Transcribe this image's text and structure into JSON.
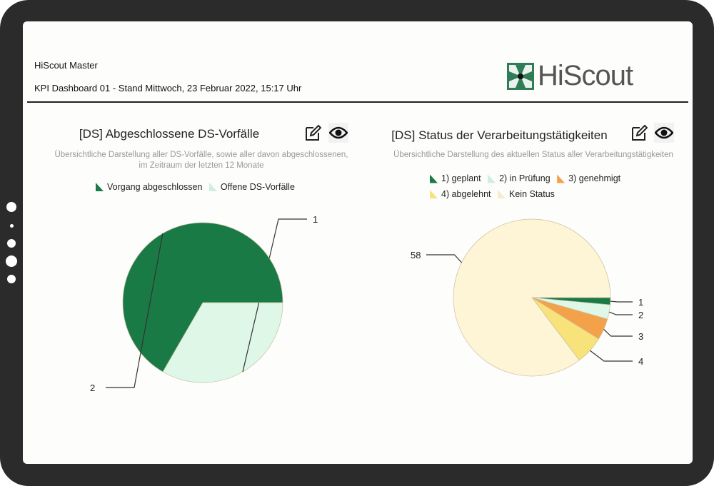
{
  "header": {
    "app_name": "HiScout Master",
    "subtitle": "KPI Dashboard 01 - Stand Mittwoch, 23 Februar 2022, 15:17 Uhr",
    "logo_text": "HiScout"
  },
  "panels": [
    {
      "title": "[DS] Abgeschlossene DS-Vorfälle",
      "description_line1": "Übersichtliche Darstellung aller DS-Vorfälle, sowie aller davon abgeschlossenen,",
      "description_line2": "im Zeitraum der letzten 12 Monate",
      "edit_icon": "pencil-square-icon",
      "view_icon": "eye-icon"
    },
    {
      "title": "[DS] Status der Verarbeitungstätigkeiten",
      "description_line1": "Übersichtliche Darstellung des aktuellen Status aller Verarbeitungstätigkeiten",
      "edit_icon": "pencil-square-icon",
      "view_icon": "eye-icon"
    }
  ],
  "chart_data": [
    {
      "type": "pie",
      "title": "[DS] Abgeschlossene DS-Vorfälle",
      "legend": "top",
      "series": [
        {
          "name": "Offene DS-Vorfälle",
          "value": 1,
          "color": "#dff7e6"
        },
        {
          "name": "Vorgang abgeschlossen",
          "value": 2,
          "color": "#1a7a45"
        }
      ],
      "data_labels": [
        "1",
        "2"
      ]
    },
    {
      "type": "pie",
      "title": "[DS] Status der Verarbeitungstätigkeiten",
      "legend": "top",
      "series": [
        {
          "name": "1) geplant",
          "value": 1,
          "color": "#1a7a45"
        },
        {
          "name": "2) in Prüfung",
          "value": 2,
          "color": "#dff7e6"
        },
        {
          "name": "3) genehmigt",
          "value": 3,
          "color": "#f4a24a"
        },
        {
          "name": "4) abgelehnt",
          "value": 4,
          "color": "#f8e27a"
        },
        {
          "name": "Kein Status",
          "value": 58,
          "color": "#fdf5d6"
        }
      ],
      "data_labels": [
        "1",
        "2",
        "3",
        "4",
        "58"
      ]
    }
  ]
}
